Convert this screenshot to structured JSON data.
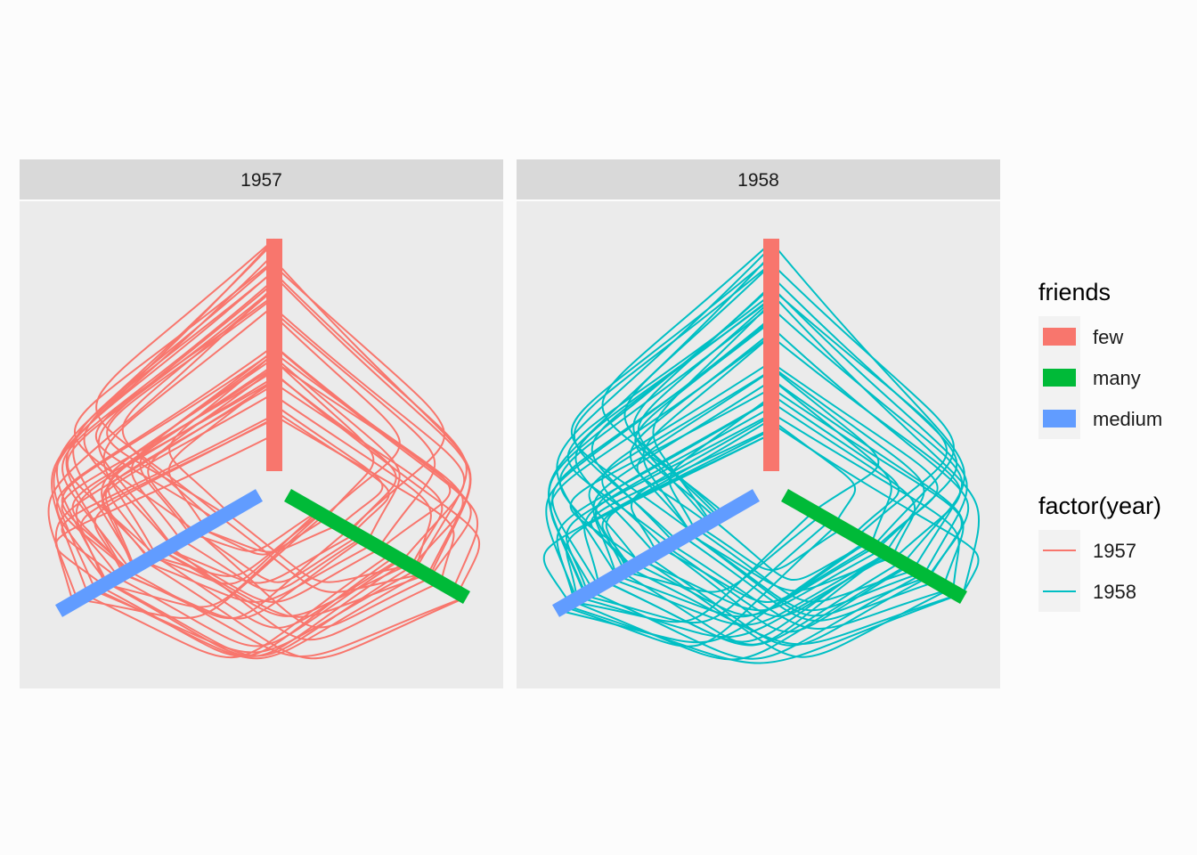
{
  "chart_data": {
    "type": "hive-plot",
    "facet_variable": "year",
    "facets": [
      "1957",
      "1958"
    ],
    "axes": [
      {
        "name": "few",
        "color": "#F8766D",
        "direction": "up"
      },
      {
        "name": "many",
        "color": "#00BA38",
        "direction": "lower-right"
      },
      {
        "name": "medium",
        "color": "#619CFF",
        "direction": "lower-left"
      }
    ],
    "edge_colors": {
      "1957": "#F8766D",
      "1958": "#00BFC4"
    },
    "edge_curvature": "arc",
    "legends": [
      {
        "title": "friends",
        "kind": "fill",
        "entries": [
          {
            "label": "few",
            "color": "#F8766D"
          },
          {
            "label": "many",
            "color": "#00BA38"
          },
          {
            "label": "medium",
            "color": "#619CFF"
          }
        ]
      },
      {
        "title": "factor(year)",
        "kind": "line",
        "entries": [
          {
            "label": "1957",
            "color": "#F8766D"
          },
          {
            "label": "1958",
            "color": "#00BFC4"
          }
        ]
      }
    ],
    "panel_background": "#EBEBEB",
    "strip_background": "#D9D9D9",
    "grid": false
  }
}
